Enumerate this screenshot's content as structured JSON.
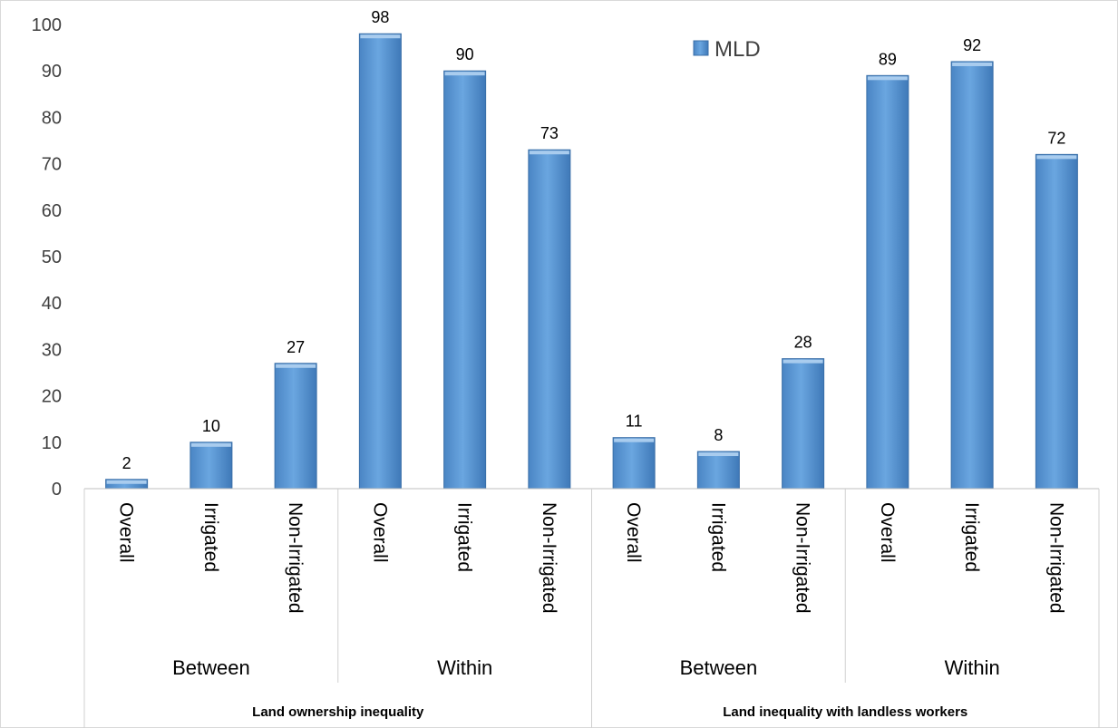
{
  "chart_data": {
    "type": "bar",
    "ylim": [
      0,
      100
    ],
    "yticks": [
      0,
      10,
      20,
      30,
      40,
      50,
      60,
      70,
      80,
      90,
      100
    ],
    "grid": false,
    "legend_position": "top-right",
    "categories": [
      "Overall",
      "Irrigated",
      "Non-Irrigated",
      "Overall",
      "Irrigated",
      "Non-Irrigated",
      "Overall",
      "Irrigated",
      "Non-Irrigated",
      "Overall",
      "Irrigated",
      "Non-Irrigated"
    ],
    "groups": [
      {
        "label": "Between",
        "span": 3
      },
      {
        "label": "Within",
        "span": 3
      },
      {
        "label": "Between",
        "span": 3
      },
      {
        "label": "Within",
        "span": 3
      }
    ],
    "top_groups": [
      {
        "label": "Land ownership inequality",
        "span": 6
      },
      {
        "label": "Land inequality with landless workers",
        "span": 6
      }
    ],
    "series": [
      {
        "name": "MLD",
        "color": "#5B9BD5",
        "values": [
          2,
          10,
          27,
          98,
          90,
          73,
          11,
          8,
          28,
          89,
          92,
          72
        ],
        "labels": [
          "2",
          "10",
          "27",
          "98",
          "90",
          "73",
          "11",
          "8",
          "28",
          "89",
          "92",
          "72"
        ]
      }
    ]
  }
}
